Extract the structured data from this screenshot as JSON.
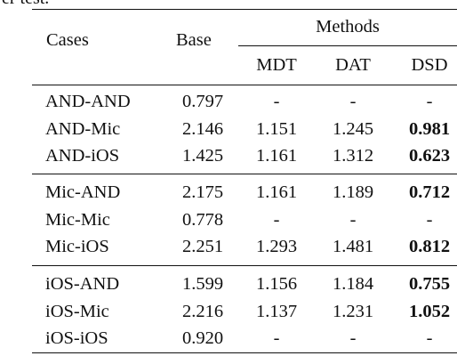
{
  "caption_fragment": "er test.",
  "header": {
    "cases": "Cases",
    "base": "Base",
    "methods": "Methods",
    "sub": [
      "MDT",
      "DAT",
      "DSD"
    ]
  },
  "groups": [
    [
      {
        "case": "AND-AND",
        "base": "0.797",
        "mdt": "-",
        "dat": "-",
        "dsd": "-"
      },
      {
        "case": "AND-Mic",
        "base": "2.146",
        "mdt": "1.151",
        "dat": "1.245",
        "dsd": "0.981"
      },
      {
        "case": "AND-iOS",
        "base": "1.425",
        "mdt": "1.161",
        "dat": "1.312",
        "dsd": "0.623"
      }
    ],
    [
      {
        "case": "Mic-AND",
        "base": "2.175",
        "mdt": "1.161",
        "dat": "1.189",
        "dsd": "0.712"
      },
      {
        "case": "Mic-Mic",
        "base": "0.778",
        "mdt": "-",
        "dat": "-",
        "dsd": "-"
      },
      {
        "case": "Mic-iOS",
        "base": "2.251",
        "mdt": "1.293",
        "dat": "1.481",
        "dsd": "0.812"
      }
    ],
    [
      {
        "case": "iOS-AND",
        "base": "1.599",
        "mdt": "1.156",
        "dat": "1.184",
        "dsd": "0.755"
      },
      {
        "case": "iOS-Mic",
        "base": "2.216",
        "mdt": "1.137",
        "dat": "1.231",
        "dsd": "1.052"
      },
      {
        "case": "iOS-iOS",
        "base": "0.920",
        "mdt": "-",
        "dat": "-",
        "dsd": "-"
      }
    ]
  ]
}
